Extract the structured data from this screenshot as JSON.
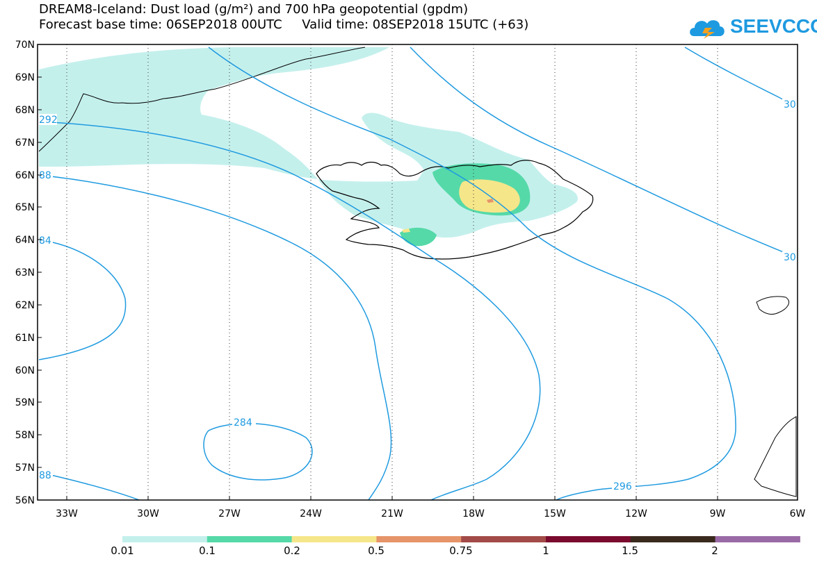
{
  "title": {
    "line1": "DREAM8-Iceland: Dust load (g/m²) and 700 hPa geopotential (gpdm)",
    "line2": "Forecast base time: 06SEP2018 00UTC     Valid time: 08SEP2018 15UTC (+63)"
  },
  "logo": {
    "text": "SEEVCCC"
  },
  "axes": {
    "lat_labels": [
      "70N",
      "69N",
      "68N",
      "67N",
      "66N",
      "65N",
      "64N",
      "63N",
      "62N",
      "61N",
      "60N",
      "59N",
      "58N",
      "57N",
      "56N"
    ],
    "lon_labels": [
      "33W",
      "30W",
      "27W",
      "24W",
      "21W",
      "18W",
      "15W",
      "12W",
      "9W",
      "6W"
    ]
  },
  "contours": {
    "labels": [
      "292",
      "88",
      "84",
      "88",
      "284",
      "296",
      "30",
      "30"
    ],
    "color": "#1e9ae0"
  },
  "colorbar": {
    "labels": [
      "0.01",
      "0.1",
      "0.2",
      "0.5",
      "0.75",
      "1",
      "1.5",
      "2"
    ],
    "colors": [
      "#c4f0ec",
      "#55d9a8",
      "#f6e68a",
      "#e6946a",
      "#a24b48",
      "#7a0a2e",
      "#3a2a1e",
      "#9a6aa6"
    ]
  },
  "colors": {
    "dust_low": "#c4f0ec",
    "dust_mid": "#55d9a8",
    "dust_high": "#f6e68a",
    "dust_peak": "#e6946a",
    "contour": "#1e9ae0",
    "coast": "#000000"
  }
}
